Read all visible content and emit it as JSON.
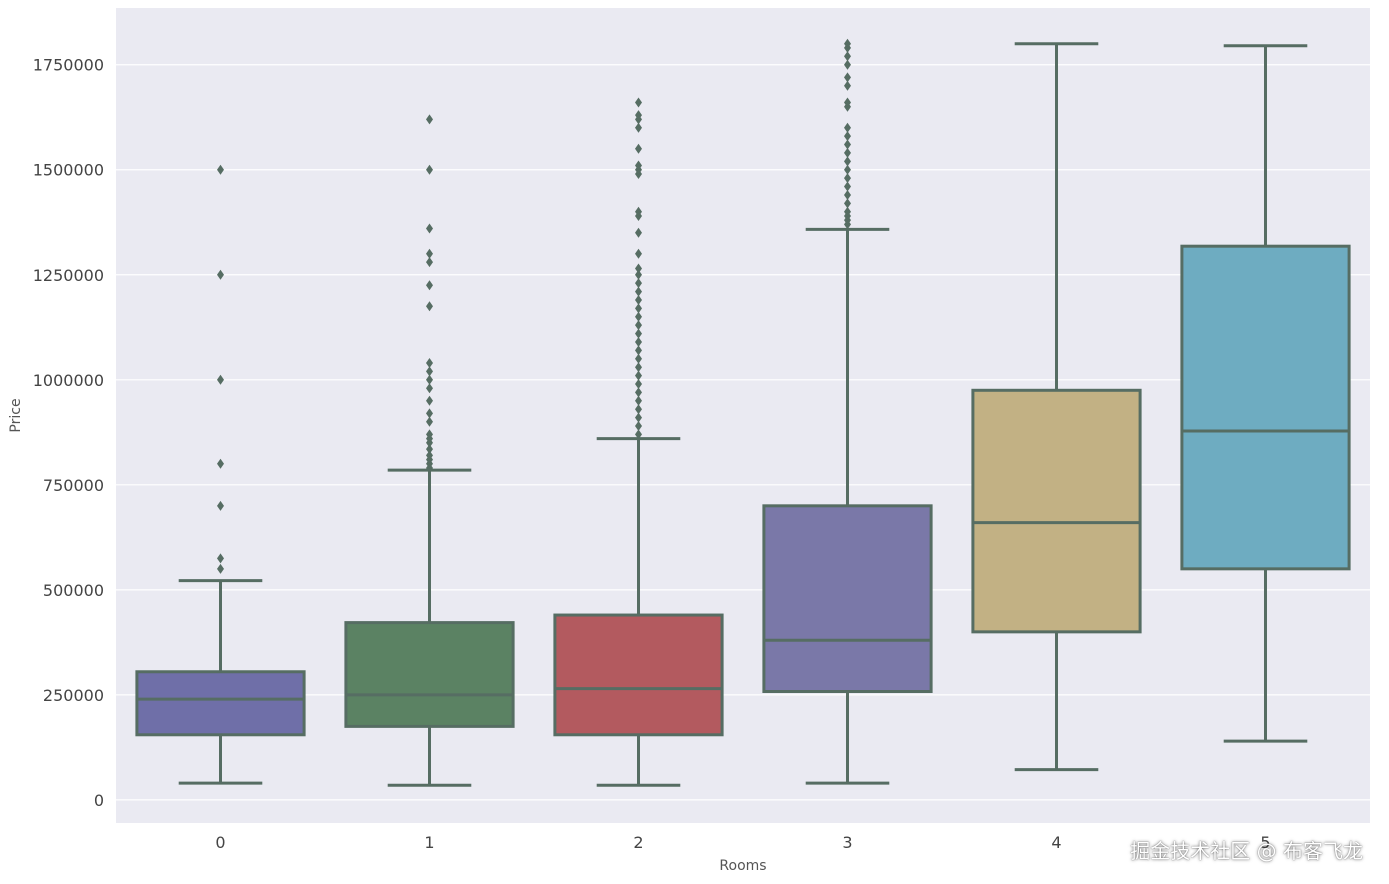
{
  "chart_data": {
    "type": "box",
    "title": "",
    "xlabel": "Rooms",
    "ylabel": "Price",
    "ylim": [
      -55000,
      1885000
    ],
    "yticks": [
      0,
      250000,
      500000,
      750000,
      1000000,
      1250000,
      1500000,
      1750000
    ],
    "ytick_labels": [
      "0",
      "250000",
      "500000",
      "750000",
      "1000000",
      "1250000",
      "1500000",
      "1750000"
    ],
    "grid": true,
    "legend": "none",
    "categories": [
      "0",
      "1",
      "2",
      "3",
      "4",
      "5"
    ],
    "boxes": [
      {
        "category": "0",
        "whisker_low": 40000,
        "q1": 155000,
        "median": 240000,
        "q3": 305000,
        "whisker_high": 522000,
        "color": "#6f6fa8",
        "outliers": [
          550000,
          575000,
          700000,
          800000,
          1000000,
          1250000,
          1500000
        ]
      },
      {
        "category": "1",
        "whisker_low": 35000,
        "q1": 175000,
        "median": 250000,
        "q3": 422000,
        "whisker_high": 785000,
        "color": "#5b8263",
        "outliers": [
          790000,
          800000,
          810000,
          820000,
          835000,
          850000,
          860000,
          870000,
          900000,
          920000,
          950000,
          980000,
          1000000,
          1020000,
          1040000,
          1175000,
          1225000,
          1280000,
          1300000,
          1360000,
          1500000,
          1620000
        ]
      },
      {
        "category": "2",
        "whisker_low": 35000,
        "q1": 155000,
        "median": 265000,
        "q3": 440000,
        "whisker_high": 860000,
        "color": "#b35a5f",
        "outliers": [
          870000,
          890000,
          910000,
          930000,
          950000,
          970000,
          990000,
          1010000,
          1030000,
          1050000,
          1070000,
          1090000,
          1110000,
          1130000,
          1150000,
          1170000,
          1190000,
          1210000,
          1230000,
          1250000,
          1265000,
          1300000,
          1350000,
          1390000,
          1400000,
          1490000,
          1500000,
          1510000,
          1550000,
          1600000,
          1620000,
          1630000,
          1660000
        ]
      },
      {
        "category": "3",
        "whisker_low": 40000,
        "q1": 258000,
        "median": 380000,
        "q3": 700000,
        "whisker_high": 1358000,
        "color": "#7a78a8",
        "outliers": [
          1370000,
          1380000,
          1390000,
          1400000,
          1420000,
          1440000,
          1460000,
          1480000,
          1500000,
          1520000,
          1540000,
          1560000,
          1580000,
          1600000,
          1650000,
          1660000,
          1700000,
          1720000,
          1750000,
          1770000,
          1790000,
          1800000
        ]
      },
      {
        "category": "4",
        "whisker_low": 72000,
        "q1": 400000,
        "median": 660000,
        "q3": 975000,
        "whisker_high": 1800000,
        "color": "#c2b184",
        "outliers": []
      },
      {
        "category": "5",
        "whisker_low": 140000,
        "q1": 550000,
        "median": 878000,
        "q3": 1318000,
        "whisker_high": 1795000,
        "color": "#6eacc1",
        "outliers": []
      }
    ],
    "line_color": "#566d63",
    "background_color": "#eaeaf2",
    "grid_color": "#ffffff"
  },
  "watermark": "掘金技术社区 @ 布客飞龙"
}
